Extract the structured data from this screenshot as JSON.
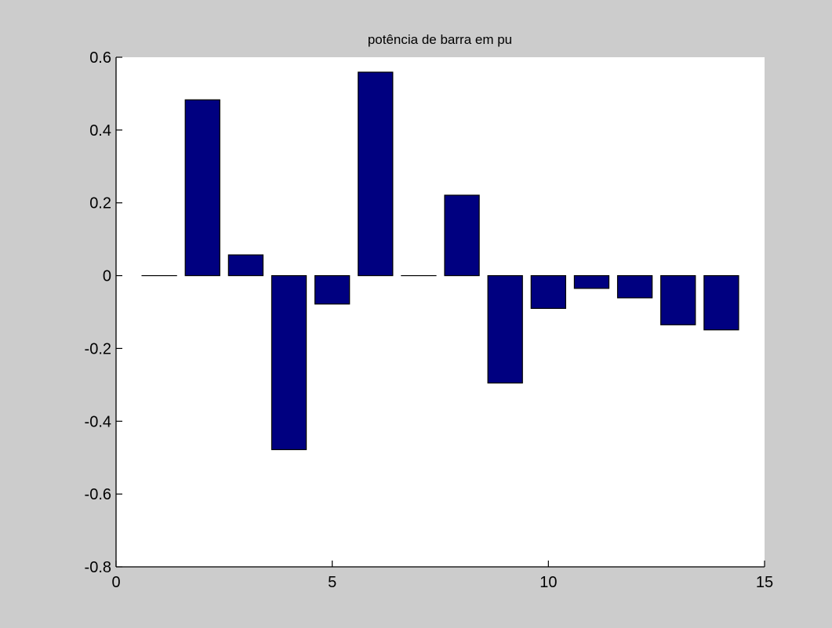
{
  "colors": {
    "figure_background": "#cccccc",
    "axes_background": "#ffffff",
    "bar_fill": "#000080",
    "axis_color": "#000000"
  },
  "chart_data": {
    "type": "bar",
    "title": "potência de barra em pu",
    "xlabel": "",
    "ylabel": "",
    "x": [
      1,
      2,
      3,
      4,
      5,
      6,
      7,
      8,
      9,
      10,
      11,
      12,
      13,
      14
    ],
    "values": [
      0,
      0.483,
      0.057,
      -0.478,
      -0.078,
      0.559,
      0,
      0.221,
      -0.295,
      -0.09,
      -0.035,
      -0.061,
      -0.135,
      -0.149
    ],
    "xlim": [
      0,
      15
    ],
    "ylim": [
      -0.8,
      0.6
    ],
    "xticks": [
      0,
      5,
      10,
      15
    ],
    "xtick_labels": [
      "0",
      "5",
      "10",
      "15"
    ],
    "yticks": [
      -0.8,
      -0.6,
      -0.4,
      -0.2,
      0,
      0.2,
      0.4,
      0.6
    ],
    "ytick_labels": [
      "-0.8",
      "-0.6",
      "-0.4",
      "-0.2",
      "0",
      "0.2",
      "0.4",
      "0.6"
    ],
    "bar_width": 0.8,
    "grid": false,
    "legend": "none"
  }
}
